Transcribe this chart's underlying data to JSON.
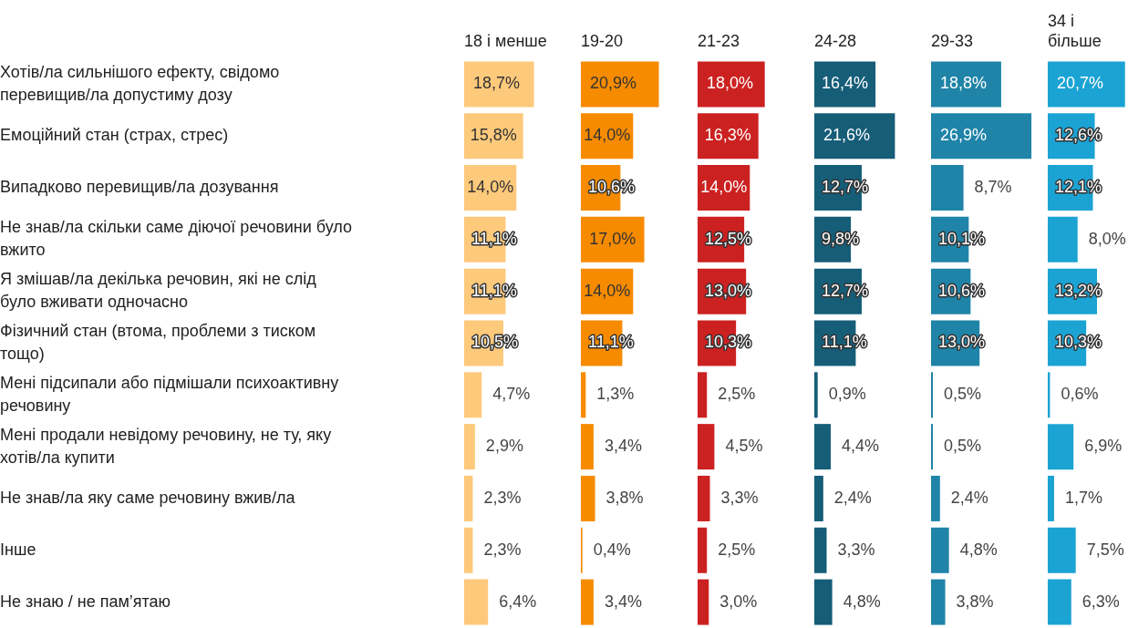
{
  "chart_data": [
    {
      "type": "bar",
      "orientation": "horizontal",
      "title": "18 і менше",
      "tick_labels": "y",
      "legend": false,
      "categories": [
        "Хотів/ла сильнішого ефекту, свідомо перевищив/ла допустиму дозу",
        "Емоційний стан (страх, стрес)",
        "Випадково перевищив/ла дозування",
        "Не знав/ла скільки саме діючої речовини було вжито",
        "Я змішав/ла декілька речовин, які не слід було вживати одночасно",
        "Фізичний стан (втома, проблеми з тиском тощо)",
        "Мені підсипали або підмішали психоактивну речовину",
        "Мені продали невідому речовину, не ту, яку хотів/ла купити",
        "Не знав/ла яку саме речовину вжив/ла",
        "Інше",
        "Не знаю / не пам’ятаю"
      ],
      "series": [
        {
          "color": "#fdc97b",
          "values": [
            18.7,
            15.8,
            14.0,
            11.1,
            11.1,
            10.5,
            4.7,
            2.9,
            2.3,
            2.3,
            6.4
          ],
          "value_labels": [
            "18,7%",
            "15,8%",
            "14,0%",
            "11,1%",
            "11,1%",
            "10,5%",
            "4,7%",
            "2,9%",
            "2,3%",
            "2,3%",
            "6,4%"
          ]
        }
      ]
    },
    {
      "type": "bar",
      "orientation": "horizontal",
      "title": "19-20",
      "tick_labels": false,
      "legend": false,
      "categories": [
        null,
        null,
        null,
        null,
        null,
        null,
        null,
        null,
        null,
        null,
        null
      ],
      "series": [
        {
          "color": "#f68b00",
          "values": [
            20.9,
            14.0,
            10.6,
            17.0,
            14.0,
            11.1,
            1.3,
            3.4,
            3.8,
            0.4,
            3.4
          ],
          "value_labels": [
            "20,9%",
            "14,0%",
            "10,6%",
            "17,0%",
            "14,0%",
            "11,1%",
            "1,3%",
            "3,4%",
            "3,8%",
            "0,4%",
            "3,4%"
          ]
        }
      ]
    },
    {
      "type": "bar",
      "orientation": "horizontal",
      "title": "21-23",
      "tick_labels": false,
      "legend": false,
      "categories": [
        null,
        null,
        null,
        null,
        null,
        null,
        null,
        null,
        null,
        null,
        null
      ],
      "series": [
        {
          "color": "#cc2121",
          "values": [
            18.0,
            16.3,
            14.0,
            12.5,
            13.0,
            10.3,
            2.5,
            4.5,
            3.3,
            2.5,
            3.0
          ],
          "value_labels": [
            "18,0%",
            "16,3%",
            "14,0%",
            "12,5%",
            "13,0%",
            "10,3%",
            "2,5%",
            "4,5%",
            "3,3%",
            "2,5%",
            "3,0%"
          ]
        }
      ]
    },
    {
      "type": "bar",
      "orientation": "horizontal",
      "title": "24-28",
      "tick_labels": false,
      "legend": false,
      "categories": [
        null,
        null,
        null,
        null,
        null,
        null,
        null,
        null,
        null,
        null,
        null
      ],
      "series": [
        {
          "color": "#165d78",
          "values": [
            16.4,
            21.6,
            12.7,
            9.8,
            12.7,
            11.1,
            0.9,
            4.4,
            2.4,
            3.3,
            4.8
          ],
          "value_labels": [
            "16,4%",
            "21,6%",
            "12,7%",
            "9,8%",
            "12,7%",
            "11,1%",
            "0,9%",
            "4,4%",
            "2,4%",
            "3,3%",
            "4,8%"
          ]
        }
      ]
    },
    {
      "type": "bar",
      "orientation": "horizontal",
      "title": "29-33",
      "tick_labels": false,
      "legend": false,
      "categories": [
        null,
        null,
        null,
        null,
        null,
        null,
        null,
        null,
        null,
        null,
        null
      ],
      "series": [
        {
          "color": "#1f84a8",
          "values": [
            18.8,
            26.9,
            8.7,
            10.1,
            10.6,
            13.0,
            0.5,
            0.5,
            2.4,
            4.8,
            3.8
          ],
          "value_labels": [
            "18,8%",
            "26,9%",
            "8,7%",
            "10,1%",
            "10,6%",
            "13,0%",
            "0,5%",
            "0,5%",
            "2,4%",
            "4,8%",
            "3,8%"
          ]
        }
      ]
    },
    {
      "type": "bar",
      "orientation": "horizontal",
      "title": "34 і більше",
      "tick_labels": false,
      "legend": false,
      "categories": [
        null,
        null,
        null,
        null,
        null,
        null,
        null,
        null,
        null,
        null,
        null
      ],
      "series": [
        {
          "color": "#1ba3d4",
          "values": [
            20.7,
            12.6,
            12.1,
            8.0,
            13.2,
            10.3,
            0.6,
            6.9,
            1.7,
            7.5,
            6.3
          ],
          "value_labels": [
            "20,7%",
            "12,6%",
            "12,1%",
            "8,0%",
            "13,2%",
            "10,3%",
            "0,6%",
            "6,9%",
            "1,7%",
            "7,5%",
            "6,3%"
          ]
        }
      ]
    }
  ]
}
